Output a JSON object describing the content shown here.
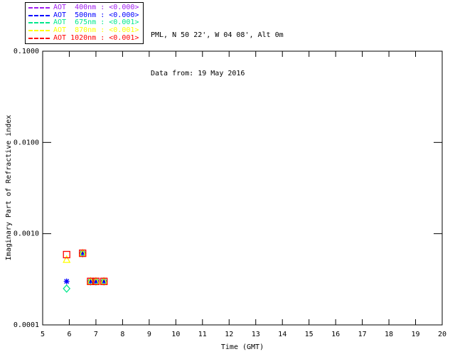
{
  "header": {
    "line1": "PML, N 50 22', W 04 08', Alt 0m",
    "line2": "Data from: 19 May 2016"
  },
  "legend": {
    "items": [
      {
        "label": "AOT  400nm : <0.000>",
        "color": "#A020F0"
      },
      {
        "label": "AOT  500nm : <0.000>",
        "color": "#0000FF"
      },
      {
        "label": "AOT  675nm : <0.001>",
        "color": "#00E88C"
      },
      {
        "label": "AOT  870nm : <0.001>",
        "color": "#FFFF00"
      },
      {
        "label": "AOT 1020nm : <0.001>",
        "color": "#FF0000"
      }
    ]
  },
  "chart_data": {
    "type": "scatter",
    "title": "",
    "xlabel": "Time (GMT)",
    "ylabel": "Imaginary Part of Refractive index",
    "xlim": [
      5,
      20
    ],
    "ylim": [
      0.0001,
      0.1
    ],
    "y_log_scale": true,
    "grid": false,
    "legend_position": "top-left-outside",
    "x_ticks": [
      5,
      6,
      7,
      8,
      9,
      10,
      11,
      12,
      13,
      14,
      15,
      16,
      17,
      18,
      19,
      20
    ],
    "y_ticks": [
      {
        "value": 0.1,
        "label": "0.1000"
      },
      {
        "value": 0.01,
        "label": "0.0100"
      },
      {
        "value": 0.001,
        "label": "0.0010"
      },
      {
        "value": 0.0001,
        "label": "0.0001"
      }
    ],
    "series": [
      {
        "name": "AOT 400nm",
        "color": "#A020F0",
        "marker": "plus",
        "points": [
          [
            6.5,
            0.00061
          ],
          [
            6.8,
            0.0003
          ],
          [
            7.0,
            0.0003
          ],
          [
            7.3,
            0.0003
          ]
        ]
      },
      {
        "name": "AOT 500nm",
        "color": "#0000FF",
        "marker": "asterisk",
        "points": [
          [
            5.9,
            0.0003
          ],
          [
            6.5,
            0.00061
          ],
          [
            6.8,
            0.0003
          ],
          [
            7.0,
            0.0003
          ],
          [
            7.3,
            0.0003
          ]
        ]
      },
      {
        "name": "AOT 675nm",
        "color": "#00E88C",
        "marker": "diamond",
        "points": [
          [
            5.9,
            0.00025
          ],
          [
            6.5,
            0.00061
          ],
          [
            6.8,
            0.0003
          ],
          [
            7.0,
            0.0003
          ],
          [
            7.3,
            0.0003
          ]
        ]
      },
      {
        "name": "AOT 870nm",
        "color": "#FFFF00",
        "marker": "triangle",
        "points": [
          [
            5.9,
            0.00052
          ],
          [
            6.5,
            0.00061
          ],
          [
            6.8,
            0.0003
          ],
          [
            7.0,
            0.0003
          ],
          [
            7.3,
            0.0003
          ]
        ]
      },
      {
        "name": "AOT 1020nm",
        "color": "#FF0000",
        "marker": "square",
        "points": [
          [
            5.9,
            0.00059
          ],
          [
            6.5,
            0.00061
          ],
          [
            6.8,
            0.0003
          ],
          [
            7.0,
            0.0003
          ],
          [
            7.3,
            0.0003
          ]
        ]
      }
    ]
  }
}
